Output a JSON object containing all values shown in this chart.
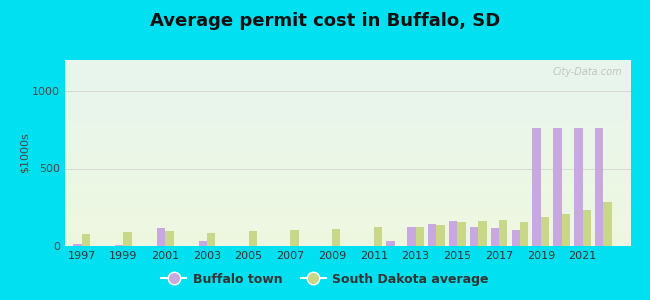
{
  "title": "Average permit cost in Buffalo, SD",
  "ylabel": "$1000s",
  "background_outer": "#00e0f0",
  "years": [
    1997,
    1998,
    1999,
    2000,
    2001,
    2002,
    2003,
    2004,
    2005,
    2006,
    2007,
    2008,
    2009,
    2010,
    2011,
    2012,
    2013,
    2014,
    2015,
    2016,
    2017,
    2018,
    2019,
    2020,
    2021,
    2022
  ],
  "buffalo": [
    15,
    0,
    5,
    0,
    115,
    0,
    30,
    0,
    0,
    0,
    0,
    0,
    0,
    0,
    0,
    30,
    120,
    140,
    160,
    120,
    115,
    105,
    760,
    760,
    760,
    760
  ],
  "sd_avg": [
    80,
    0,
    90,
    0,
    95,
    0,
    85,
    0,
    100,
    0,
    105,
    0,
    110,
    0,
    120,
    0,
    125,
    135,
    155,
    160,
    170,
    155,
    185,
    205,
    235,
    285
  ],
  "buffalo_color": "#c8a8e0",
  "sd_avg_color": "#c8d888",
  "ylim": [
    0,
    1200
  ],
  "yticks": [
    0,
    500,
    1000
  ],
  "xtick_years": [
    1997,
    1999,
    2001,
    2003,
    2005,
    2007,
    2009,
    2011,
    2013,
    2015,
    2017,
    2019,
    2021
  ],
  "grid_color": "#d8d8d8",
  "bar_width": 0.4,
  "title_fontsize": 13,
  "axis_fontsize": 8,
  "legend_fontsize": 9,
  "watermark": "City-Data.com",
  "bg_top": "#e8f5ee",
  "bg_bottom": "#eef8e0"
}
